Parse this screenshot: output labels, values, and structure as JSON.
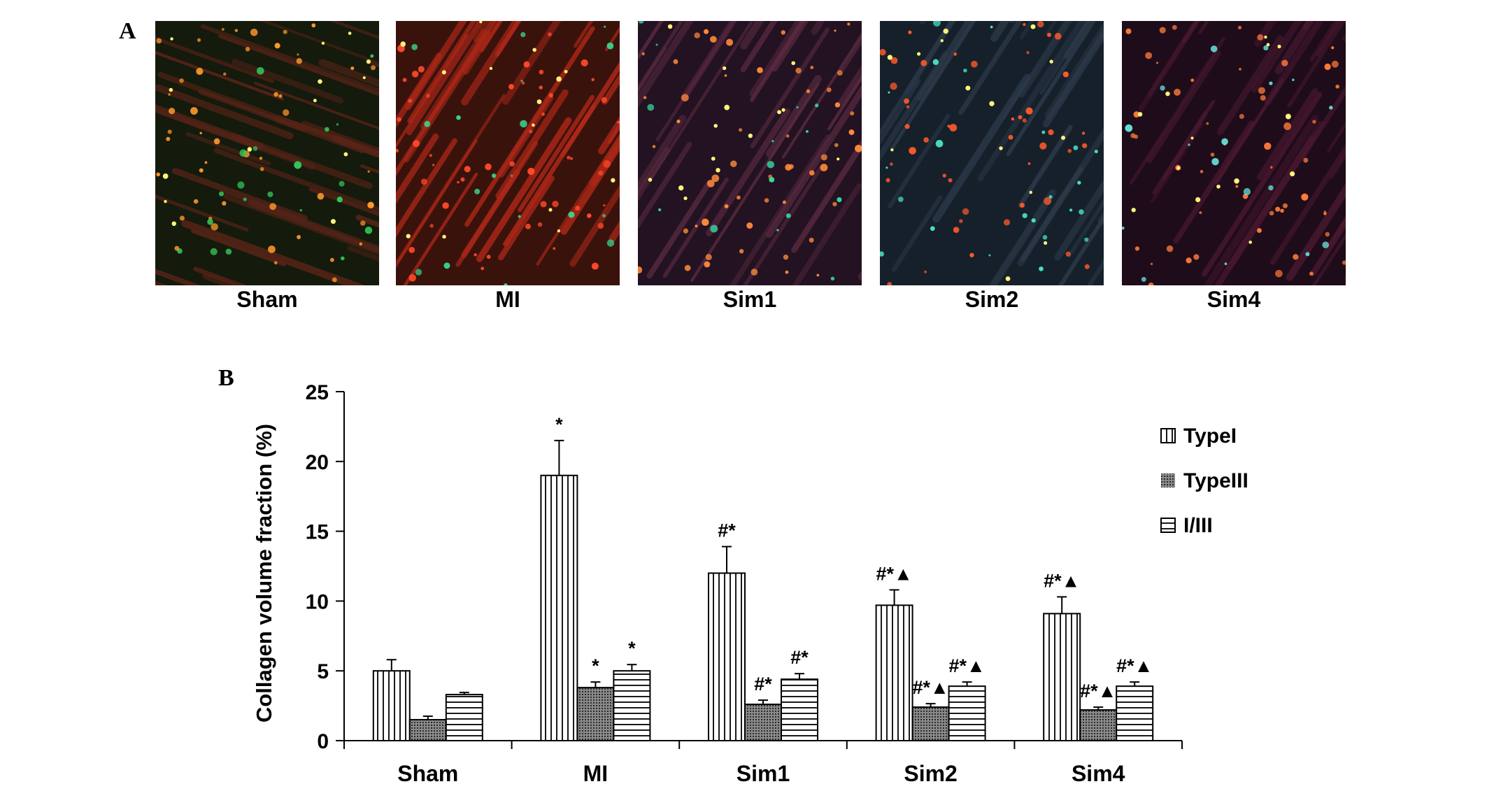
{
  "panel_labels": {
    "a": "A",
    "b": "B"
  },
  "micrographs": [
    {
      "label": "Sham",
      "base": "#141a0c",
      "fiber": "#5a2418",
      "accent": "#ff9a2a",
      "green": "#36c458"
    },
    {
      "label": "MI",
      "base": "#3a120c",
      "fiber": "#b02818",
      "accent": "#ff4a2a",
      "green": "#38d488"
    },
    {
      "label": "Sim1",
      "base": "#221222",
      "fiber": "#5a2a40",
      "accent": "#ff8a3a",
      "green": "#3ad8a0"
    },
    {
      "label": "Sim2",
      "base": "#16202a",
      "fiber": "#2c3a4a",
      "accent": "#ff5a2a",
      "green": "#48e8c8"
    },
    {
      "label": "Sim4",
      "base": "#1e0c1a",
      "fiber": "#4a1830",
      "accent": "#ff7a3a",
      "green": "#6ae8e0"
    }
  ],
  "chart_data": {
    "type": "bar",
    "ylabel": "Collagen volume fraction  (%)",
    "ylim": [
      0,
      25
    ],
    "yticks": [
      0,
      5,
      10,
      15,
      20,
      25
    ],
    "categories": [
      "Sham",
      "MI",
      "Sim1",
      "Sim2",
      "Sim4"
    ],
    "legend_position": "right",
    "series": [
      {
        "name": "TypeI",
        "pattern": "vertical",
        "values": [
          5.0,
          19.0,
          12.0,
          9.7,
          9.1
        ],
        "errors": [
          0.8,
          2.5,
          1.9,
          1.1,
          1.2
        ],
        "annotations": [
          "",
          "*",
          "#*",
          "#*▲",
          "#*▲"
        ]
      },
      {
        "name": "TypeIII",
        "pattern": "dots",
        "values": [
          1.5,
          3.8,
          2.6,
          2.4,
          2.2
        ],
        "errors": [
          0.25,
          0.4,
          0.3,
          0.25,
          0.2
        ],
        "annotations": [
          "",
          "*",
          "#*",
          "#*▲",
          "#*▲"
        ]
      },
      {
        "name": "I/III",
        "pattern": "horizontal",
        "values": [
          3.3,
          5.0,
          4.4,
          3.9,
          3.9
        ],
        "errors": [
          0.15,
          0.45,
          0.4,
          0.3,
          0.3
        ],
        "annotations": [
          "",
          "*",
          "#*",
          "#*▲",
          "#*▲"
        ]
      }
    ]
  }
}
